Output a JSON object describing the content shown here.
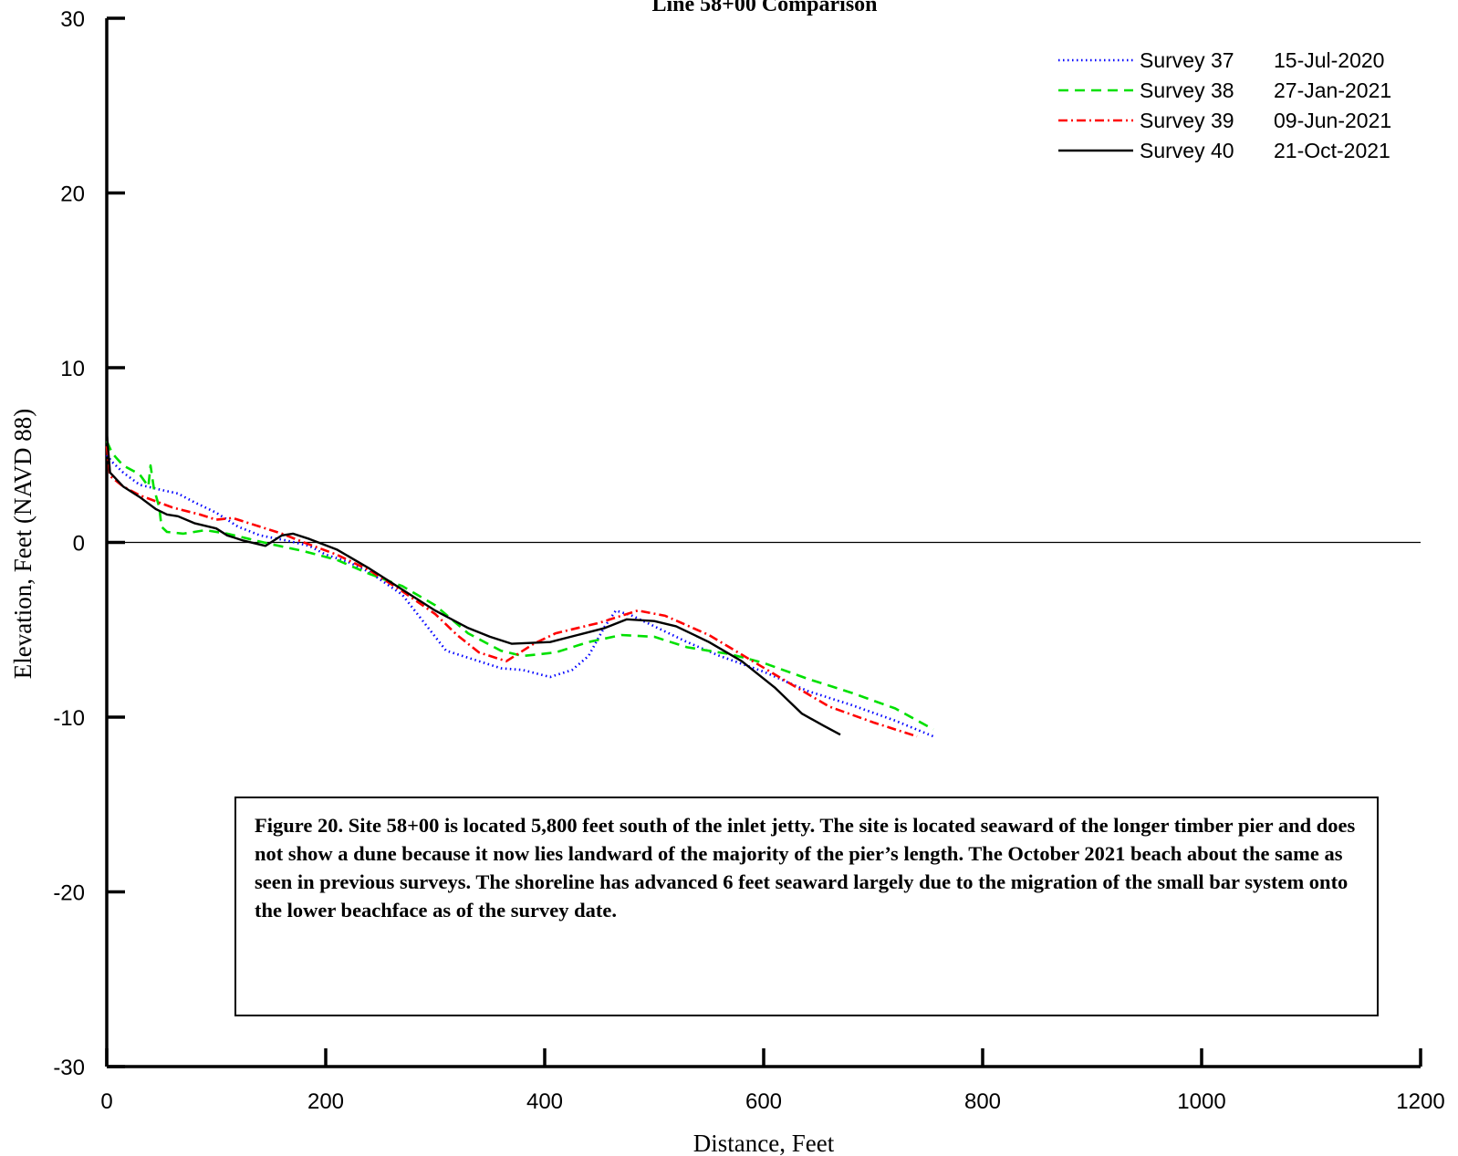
{
  "chart_data": {
    "type": "line",
    "title": "Line 58+00 Comparison",
    "xlabel": "Distance, Feet",
    "ylabel": "Elevation, Feet (NAVD 88)",
    "xlim": [
      0,
      1200
    ],
    "ylim": [
      -30,
      30
    ],
    "xticks": [
      0,
      200,
      400,
      600,
      800,
      1000,
      1200
    ],
    "yticks": [
      -30,
      -20,
      -10,
      0,
      10,
      20,
      30
    ],
    "grid": false,
    "zero_line": true,
    "legend_position": "top-right",
    "series": [
      {
        "name": "Survey  37",
        "date": "15-Jul-2020",
        "color": "#0000ff",
        "style": "dotted",
        "points": [
          [
            0,
            5.0
          ],
          [
            5,
            4.6
          ],
          [
            15,
            4.0
          ],
          [
            30,
            3.3
          ],
          [
            50,
            3.0
          ],
          [
            65,
            2.8
          ],
          [
            80,
            2.3
          ],
          [
            100,
            1.7
          ],
          [
            120,
            0.9
          ],
          [
            140,
            0.4
          ],
          [
            165,
            0.1
          ],
          [
            185,
            -0.2
          ],
          [
            200,
            -0.7
          ],
          [
            220,
            -1.1
          ],
          [
            240,
            -1.7
          ],
          [
            270,
            -3.0
          ],
          [
            290,
            -4.6
          ],
          [
            310,
            -6.2
          ],
          [
            340,
            -6.8
          ],
          [
            360,
            -7.2
          ],
          [
            380,
            -7.3
          ],
          [
            405,
            -7.7
          ],
          [
            425,
            -7.3
          ],
          [
            440,
            -6.5
          ],
          [
            455,
            -4.8
          ],
          [
            465,
            -3.9
          ],
          [
            480,
            -4.2
          ],
          [
            500,
            -4.8
          ],
          [
            530,
            -5.7
          ],
          [
            560,
            -6.5
          ],
          [
            600,
            -7.4
          ],
          [
            640,
            -8.5
          ],
          [
            680,
            -9.3
          ],
          [
            720,
            -10.2
          ],
          [
            755,
            -11.1
          ]
        ]
      },
      {
        "name": "Survey  38",
        "date": "27-Jan-2021",
        "color": "#00e000",
        "style": "dashed",
        "points": [
          [
            0,
            5.8
          ],
          [
            5,
            5.1
          ],
          [
            15,
            4.4
          ],
          [
            30,
            3.9
          ],
          [
            38,
            3.2
          ],
          [
            40,
            4.4
          ],
          [
            43,
            3.1
          ],
          [
            48,
            2.0
          ],
          [
            50,
            0.9
          ],
          [
            55,
            0.6
          ],
          [
            70,
            0.5
          ],
          [
            90,
            0.7
          ],
          [
            110,
            0.5
          ],
          [
            130,
            0.2
          ],
          [
            150,
            -0.1
          ],
          [
            180,
            -0.5
          ],
          [
            210,
            -1.0
          ],
          [
            240,
            -1.8
          ],
          [
            270,
            -2.5
          ],
          [
            300,
            -3.6
          ],
          [
            330,
            -5.2
          ],
          [
            360,
            -6.2
          ],
          [
            380,
            -6.5
          ],
          [
            410,
            -6.3
          ],
          [
            440,
            -5.7
          ],
          [
            470,
            -5.3
          ],
          [
            500,
            -5.4
          ],
          [
            530,
            -6.0
          ],
          [
            570,
            -6.4
          ],
          [
            600,
            -6.9
          ],
          [
            640,
            -7.8
          ],
          [
            680,
            -8.6
          ],
          [
            720,
            -9.5
          ],
          [
            755,
            -10.7
          ]
        ]
      },
      {
        "name": "Survey  39",
        "date": "09-Jun-2021",
        "color": "#ff0000",
        "style": "dashdot",
        "points": [
          [
            0,
            5.5
          ],
          [
            3,
            3.8
          ],
          [
            15,
            3.2
          ],
          [
            30,
            2.7
          ],
          [
            60,
            2.0
          ],
          [
            85,
            1.6
          ],
          [
            100,
            1.3
          ],
          [
            115,
            1.4
          ],
          [
            140,
            0.9
          ],
          [
            160,
            0.5
          ],
          [
            180,
            0.0
          ],
          [
            210,
            -0.7
          ],
          [
            240,
            -1.6
          ],
          [
            270,
            -2.8
          ],
          [
            300,
            -4.1
          ],
          [
            320,
            -5.3
          ],
          [
            340,
            -6.3
          ],
          [
            365,
            -6.8
          ],
          [
            390,
            -5.8
          ],
          [
            410,
            -5.2
          ],
          [
            430,
            -4.9
          ],
          [
            450,
            -4.6
          ],
          [
            470,
            -4.2
          ],
          [
            485,
            -3.9
          ],
          [
            510,
            -4.2
          ],
          [
            550,
            -5.3
          ],
          [
            590,
            -6.8
          ],
          [
            630,
            -8.3
          ],
          [
            660,
            -9.4
          ],
          [
            700,
            -10.3
          ],
          [
            740,
            -11.1
          ]
        ]
      },
      {
        "name": "Survey  40",
        "date": "21-Oct-2021",
        "color": "#000000",
        "style": "solid",
        "points": [
          [
            0,
            6.3
          ],
          [
            3,
            4.0
          ],
          [
            15,
            3.2
          ],
          [
            30,
            2.6
          ],
          [
            45,
            1.9
          ],
          [
            55,
            1.6
          ],
          [
            65,
            1.5
          ],
          [
            80,
            1.1
          ],
          [
            100,
            0.8
          ],
          [
            110,
            0.4
          ],
          [
            125,
            0.1
          ],
          [
            145,
            -0.2
          ],
          [
            160,
            0.4
          ],
          [
            170,
            0.5
          ],
          [
            185,
            0.2
          ],
          [
            210,
            -0.4
          ],
          [
            240,
            -1.5
          ],
          [
            270,
            -2.7
          ],
          [
            300,
            -3.9
          ],
          [
            330,
            -4.9
          ],
          [
            350,
            -5.4
          ],
          [
            370,
            -5.8
          ],
          [
            405,
            -5.7
          ],
          [
            430,
            -5.3
          ],
          [
            455,
            -4.9
          ],
          [
            475,
            -4.4
          ],
          [
            500,
            -4.5
          ],
          [
            520,
            -4.8
          ],
          [
            550,
            -5.7
          ],
          [
            580,
            -6.8
          ],
          [
            610,
            -8.3
          ],
          [
            635,
            -9.8
          ],
          [
            655,
            -10.5
          ],
          [
            670,
            -11.0
          ]
        ]
      }
    ],
    "caption": "Figure 20.  Site 58+00 is located 5,800 feet south of the inlet jetty.  The site is located seaward of the longer timber pier and does not show a dune because it now lies landward of the majority of the pier’s length.  The October 2021 beach about the same as seen in previous surveys.  The shoreline has advanced 6 feet seaward largely due to the migration of the small bar system onto the lower beachface as of the survey date."
  }
}
